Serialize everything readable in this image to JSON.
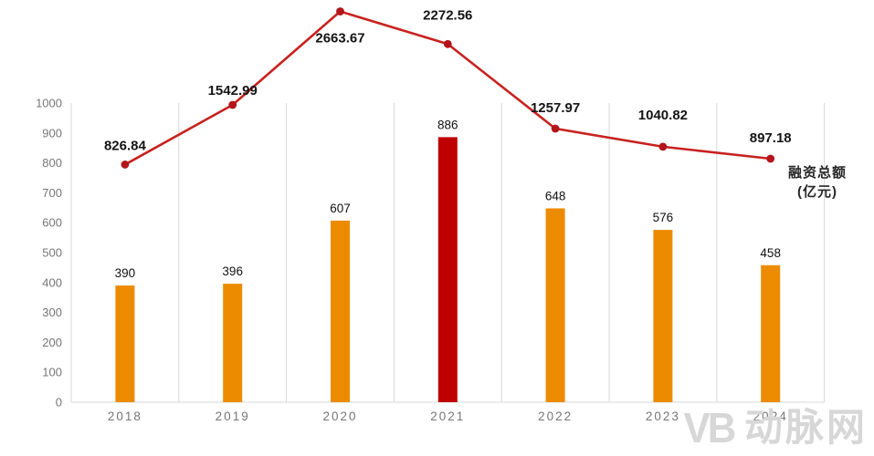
{
  "chart_data": {
    "type": "bar+line",
    "categories": [
      "2018",
      "2019",
      "2020",
      "2021",
      "2022",
      "2023",
      "2024"
    ],
    "series": [
      {
        "type": "bar",
        "values": [
          390,
          396,
          607,
          886,
          648,
          576,
          458
        ],
        "color": "#ED8B00",
        "highlight_index": 3,
        "highlight_color": "#C00000"
      },
      {
        "type": "line",
        "name": "融资总额(亿元)",
        "values": [
          826.84,
          1542.99,
          2663.67,
          2272.56,
          1257.97,
          1040.82,
          897.18
        ],
        "color": "#C8221F",
        "marker_color": "#B2151A"
      }
    ],
    "y_axis": {
      "min": 0,
      "max": 1000,
      "step": 100,
      "tick_labels": [
        "0",
        "100",
        "200",
        "300",
        "400",
        "500",
        "600",
        "700",
        "800",
        "900",
        "1000"
      ]
    },
    "legend": {
      "lines": [
        "融资总额",
        "(亿元)"
      ],
      "position": "right-middle"
    },
    "grid": "vertical-only",
    "xlabel": "",
    "ylabel": ""
  },
  "watermark": {
    "logo_text": "VB",
    "brand_text": "动脉网"
  },
  "colors": {
    "background": "#FFFFFF",
    "axis": "#D9D9D9",
    "tick_label": "#767676",
    "bar_label": "#111111",
    "line_label": "#141414",
    "legend_text": "#262626",
    "watermark": "#D7D7D7"
  }
}
